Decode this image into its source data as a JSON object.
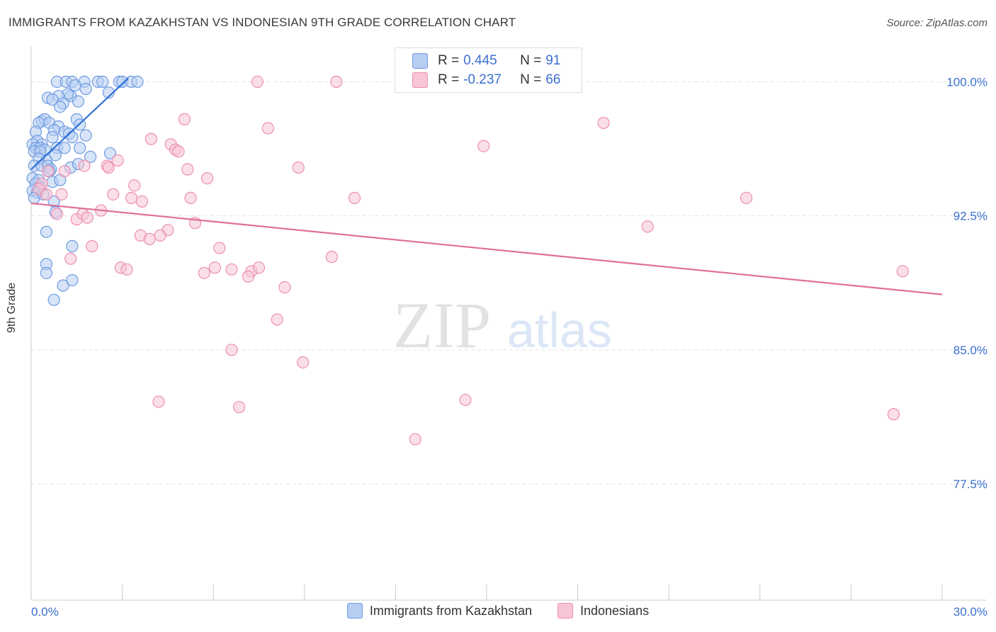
{
  "title": "IMMIGRANTS FROM KAZAKHSTAN VS INDONESIAN 9TH GRADE CORRELATION CHART",
  "source": "Source: ZipAtlas.com",
  "watermark": {
    "zip": "ZIP",
    "atlas": "atlas"
  },
  "legend_top": [
    {
      "r_label": "R =",
      "r_value": "0.445",
      "n_label": "N =",
      "n_value": "91",
      "fill": "#b7cdf2",
      "stroke": "#6f9be0"
    },
    {
      "r_label": "R =",
      "r_value": "-0.237",
      "n_label": "N =",
      "n_value": "66",
      "fill": "#f8c5d5",
      "stroke": "#ec8fae"
    }
  ],
  "chart_data": {
    "type": "scatter",
    "title": "IMMIGRANTS FROM KAZAKHSTAN VS INDONESIAN 9TH GRADE CORRELATION CHART",
    "xlabel": "",
    "ylabel": "9th Grade",
    "xlim": [
      0,
      30
    ],
    "ylim": [
      71.0,
      101.8
    ],
    "x_tick_labels": [
      "0.0%",
      "30.0%"
    ],
    "y_ticks": [
      {
        "value": 100.0,
        "label": "100.0%"
      },
      {
        "value": 92.5,
        "label": "92.5%"
      },
      {
        "value": 85.0,
        "label": "85.0%"
      },
      {
        "value": 77.5,
        "label": "77.5%"
      }
    ],
    "grid": true,
    "legend_position": "bottom",
    "series": [
      {
        "name": "Immigrants from Kazakhstan",
        "color": "#6f9be0",
        "fill": "#b7cdf2",
        "trend": {
          "x1": 0.0,
          "y1": 95.1,
          "x2": 3.2,
          "y2": 100.2,
          "color": "#2f6fd6"
        },
        "points": [
          [
            0.85,
            100.0
          ],
          [
            1.15,
            100.0
          ],
          [
            1.35,
            100.0
          ],
          [
            1.75,
            100.0
          ],
          [
            2.2,
            100.0
          ],
          [
            2.35,
            100.0
          ],
          [
            2.9,
            100.0
          ],
          [
            3.0,
            100.0
          ],
          [
            3.3,
            100.0
          ],
          [
            3.5,
            100.0
          ],
          [
            1.45,
            99.8
          ],
          [
            1.8,
            99.6
          ],
          [
            2.55,
            99.4
          ],
          [
            1.3,
            99.2
          ],
          [
            1.2,
            99.3
          ],
          [
            0.9,
            99.2
          ],
          [
            0.55,
            99.1
          ],
          [
            0.7,
            99.0
          ],
          [
            1.55,
            98.9
          ],
          [
            1.05,
            98.8
          ],
          [
            0.95,
            98.6
          ],
          [
            0.35,
            97.8
          ],
          [
            0.45,
            97.9
          ],
          [
            0.25,
            97.7
          ],
          [
            0.6,
            97.7
          ],
          [
            1.5,
            97.9
          ],
          [
            0.9,
            97.5
          ],
          [
            0.75,
            97.3
          ],
          [
            1.6,
            97.6
          ],
          [
            1.1,
            97.2
          ],
          [
            1.25,
            97.1
          ],
          [
            1.35,
            96.9
          ],
          [
            0.7,
            96.9
          ],
          [
            1.8,
            97.0
          ],
          [
            0.15,
            97.2
          ],
          [
            0.2,
            96.7
          ],
          [
            0.35,
            96.5
          ],
          [
            0.05,
            96.5
          ],
          [
            0.15,
            96.3
          ],
          [
            0.3,
            96.3
          ],
          [
            0.45,
            96.2
          ],
          [
            0.1,
            96.1
          ],
          [
            0.3,
            96.1
          ],
          [
            0.85,
            96.3
          ],
          [
            1.1,
            96.3
          ],
          [
            1.6,
            96.3
          ],
          [
            2.6,
            96.0
          ],
          [
            0.8,
            95.9
          ],
          [
            0.5,
            95.6
          ],
          [
            0.25,
            95.7
          ],
          [
            1.95,
            95.8
          ],
          [
            0.1,
            95.3
          ],
          [
            0.35,
            95.3
          ],
          [
            0.55,
            95.3
          ],
          [
            0.65,
            95.1
          ],
          [
            1.3,
            95.2
          ],
          [
            0.6,
            95.0
          ],
          [
            1.55,
            95.4
          ],
          [
            0.05,
            94.6
          ],
          [
            0.25,
            94.5
          ],
          [
            0.7,
            94.4
          ],
          [
            0.95,
            94.5
          ],
          [
            0.15,
            94.3
          ],
          [
            0.3,
            94.1
          ],
          [
            0.05,
            93.9
          ],
          [
            0.2,
            93.8
          ],
          [
            0.1,
            93.5
          ],
          [
            0.4,
            93.7
          ],
          [
            0.75,
            93.3
          ],
          [
            0.8,
            92.7
          ],
          [
            0.5,
            91.6
          ],
          [
            1.35,
            90.8
          ],
          [
            0.5,
            89.8
          ],
          [
            0.5,
            89.3
          ],
          [
            1.05,
            88.6
          ],
          [
            1.35,
            88.9
          ],
          [
            0.75,
            87.8
          ]
        ]
      },
      {
        "name": "Indonesians",
        "color": "#ec8fae",
        "fill": "#f8c5d5",
        "trend": {
          "x1": 0.0,
          "y1": 93.2,
          "x2": 30.0,
          "y2": 88.1,
          "color": "#e06f98"
        },
        "points": [
          [
            7.45,
            100.0
          ],
          [
            10.05,
            100.0
          ],
          [
            5.05,
            97.9
          ],
          [
            7.8,
            97.4
          ],
          [
            18.85,
            97.7
          ],
          [
            3.95,
            96.8
          ],
          [
            4.6,
            96.5
          ],
          [
            4.75,
            96.2
          ],
          [
            4.85,
            96.1
          ],
          [
            14.9,
            96.4
          ],
          [
            2.85,
            95.6
          ],
          [
            2.5,
            95.3
          ],
          [
            2.55,
            95.2
          ],
          [
            1.75,
            95.3
          ],
          [
            5.15,
            95.1
          ],
          [
            8.8,
            95.2
          ],
          [
            5.8,
            94.6
          ],
          [
            3.4,
            94.2
          ],
          [
            1.1,
            95.0
          ],
          [
            0.55,
            95.0
          ],
          [
            0.35,
            94.3
          ],
          [
            0.25,
            94.0
          ],
          [
            0.5,
            93.7
          ],
          [
            1.0,
            93.7
          ],
          [
            2.7,
            93.7
          ],
          [
            3.3,
            93.5
          ],
          [
            3.65,
            93.3
          ],
          [
            5.25,
            93.5
          ],
          [
            10.65,
            93.5
          ],
          [
            23.55,
            93.5
          ],
          [
            2.3,
            92.8
          ],
          [
            1.5,
            92.3
          ],
          [
            1.7,
            92.6
          ],
          [
            1.85,
            92.4
          ],
          [
            0.85,
            92.6
          ],
          [
            5.4,
            92.1
          ],
          [
            4.5,
            91.7
          ],
          [
            3.6,
            91.4
          ],
          [
            3.9,
            91.2
          ],
          [
            4.25,
            91.4
          ],
          [
            2.0,
            90.8
          ],
          [
            6.2,
            90.7
          ],
          [
            20.3,
            91.9
          ],
          [
            1.3,
            90.1
          ],
          [
            9.9,
            90.2
          ],
          [
            2.95,
            89.6
          ],
          [
            3.15,
            89.5
          ],
          [
            5.7,
            89.3
          ],
          [
            6.05,
            89.6
          ],
          [
            6.6,
            89.5
          ],
          [
            7.25,
            89.4
          ],
          [
            7.5,
            89.6
          ],
          [
            7.15,
            89.1
          ],
          [
            28.7,
            89.4
          ],
          [
            8.35,
            88.5
          ],
          [
            8.1,
            86.7
          ],
          [
            6.6,
            85.0
          ],
          [
            8.95,
            84.3
          ],
          [
            4.2,
            82.1
          ],
          [
            6.85,
            81.8
          ],
          [
            14.3,
            82.2
          ],
          [
            28.4,
            81.4
          ],
          [
            12.65,
            80.0
          ]
        ]
      }
    ]
  }
}
